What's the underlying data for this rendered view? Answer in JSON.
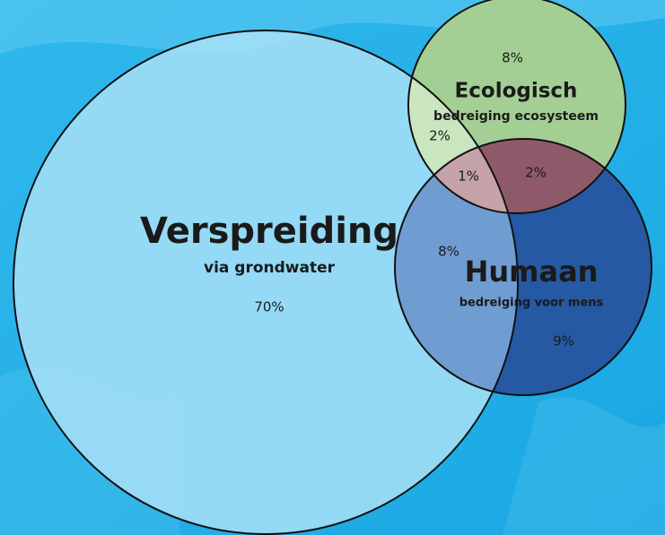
{
  "sets": [
    {
      "title": "Verspreiding",
      "subtitle": "via grondwater"
    },
    {
      "title": "Ecologisch",
      "subtitle": "bedreiging ecosysteem"
    },
    {
      "title": "Humaan",
      "subtitle": "bedreiging voor mens"
    }
  ],
  "regions": [
    {
      "label": "70%"
    },
    {
      "label": "8%"
    },
    {
      "label": "9%"
    },
    {
      "label": "2%"
    },
    {
      "label": "8%"
    },
    {
      "label": "2%"
    },
    {
      "label": "1%"
    }
  ]
}
